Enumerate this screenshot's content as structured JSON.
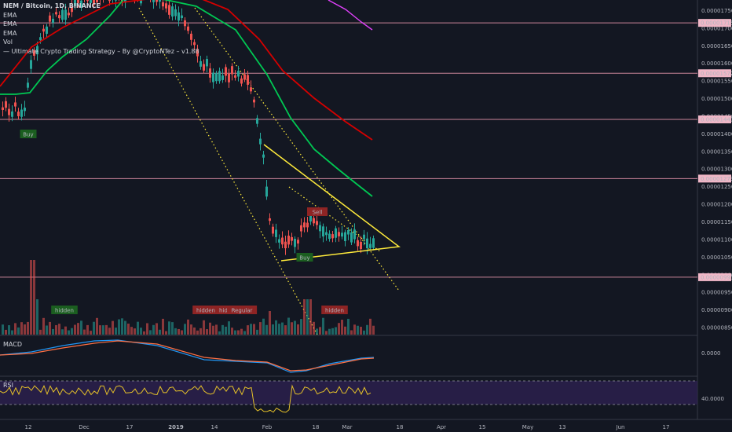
{
  "legend": {
    "pair": "NEM / Bitcoin, 1D, BINANCE",
    "ema1": "EMA",
    "ema2": "EMA",
    "ema3": "EMA",
    "vol": "Vol",
    "strategy": "— Ultimate Crypto Trading Strategy – By @CryptoNTez – v1.88"
  },
  "panes": {
    "macd": "MACD",
    "rsi": "RSI"
  },
  "colors": {
    "background": "#131722",
    "candle_up": "#26a69a",
    "candle_down": "#ef5350",
    "ema_fast": "#00c853",
    "ema_mid": "#d50000",
    "ema_slow": "#e040fb",
    "trend": "#ffeb3b",
    "level_line": "#e091a8",
    "macd_line": "#2196f3",
    "signal_line": "#ff7043",
    "rsi_line": "#e6c229",
    "rsi_band": "#2a1f4a"
  },
  "chart_data": {
    "type": "candlestick",
    "title": "NEM / Bitcoin, 1D, BINANCE",
    "x_ticks": [
      "12",
      "Dec",
      "17",
      "2019",
      "14",
      "Feb",
      "18",
      "Mar",
      "18",
      "Apr",
      "15",
      "May",
      "13",
      "Jun",
      "17"
    ],
    "y_ticks": [
      "0.00001750",
      "0.00001700",
      "0.00001650",
      "0.00001600",
      "0.00001550",
      "0.00001500",
      "0.00001450",
      "0.00001400",
      "0.00001350",
      "0.00001300",
      "0.00001250",
      "0.00001200",
      "0.00001150",
      "0.00001100",
      "0.00001050",
      "0.00001000",
      "0.00000950",
      "0.00000900",
      "0.00000850"
    ],
    "ylim": [
      8.3e-06,
      1.78e-05
    ],
    "price_levels": [
      {
        "label": "0.00001715",
        "value": 1.715e-05
      },
      {
        "label": "0.00001572",
        "value": 1.572e-05
      },
      {
        "label": "0.00001441",
        "value": 1.441e-05
      },
      {
        "label": "0.00001273",
        "value": 1.273e-05
      },
      {
        "label": "0.00000993",
        "value": 9.93e-06
      }
    ],
    "signals": [
      {
        "label": "Buy",
        "type": "buy",
        "x": "Nov 10",
        "value": 1.38e-05
      },
      {
        "label": "Sell",
        "type": "sell",
        "x": "Feb 16",
        "value": 1.18e-05
      },
      {
        "label": "Buy",
        "type": "buy",
        "x": "Feb 15",
        "value": 1.03e-05
      }
    ],
    "divergence_labels": [
      {
        "label": "hidden",
        "type": "bull",
        "x": "Nov 20"
      },
      {
        "label": "hidden",
        "type": "bear",
        "x": "Jan 2"
      },
      {
        "label": "hidden",
        "type": "bear",
        "x": "Jan 8"
      },
      {
        "label": "Regular",
        "type": "bear",
        "x": "Jan 11"
      },
      {
        "label": "hidden",
        "type": "bear",
        "x": "Feb 23"
      }
    ],
    "macd_ticks": [
      "0.0000"
    ],
    "rsi_ticks": [
      "40.0000"
    ],
    "candles_close_sample": [
      1.7e-05,
      1.72e-05,
      1.76e-05,
      1.68e-05,
      1.64e-05,
      1.58e-05,
      1.55e-05,
      1.47e-05,
      1.35e-05,
      1.1e-05,
      1.05e-05,
      1.09e-05,
      1.15e-05,
      1.1e-05,
      1.12e-05,
      1.08e-05,
      1.06e-05
    ]
  }
}
